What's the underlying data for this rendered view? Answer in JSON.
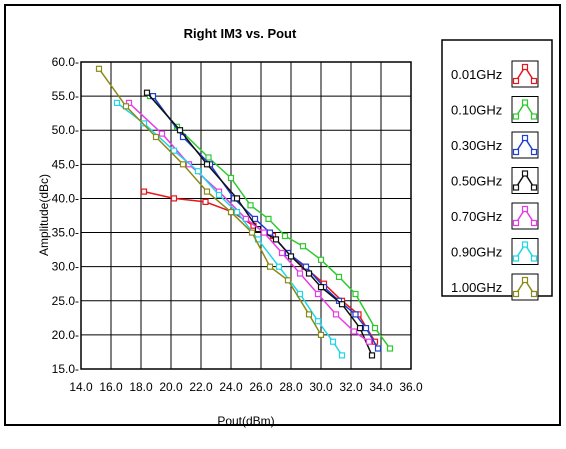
{
  "chart_data": {
    "type": "line",
    "title": "Right IM3 vs. Pout",
    "xlabel": "Pout(dBm)",
    "ylabel": "Amplitude(dBc)",
    "xlim": [
      14.0,
      36.0
    ],
    "ylim": [
      15.0,
      60.0
    ],
    "x_ticks": [
      "14.0",
      "16.0",
      "18.0",
      "20.0",
      "22.0",
      "24.0",
      "26.0",
      "28.0",
      "30.0",
      "32.0",
      "34.0",
      "36.0"
    ],
    "y_ticks": [
      "15.0-",
      "20.0-",
      "25.0-",
      "30.0-",
      "35.0-",
      "40.0-",
      "45.0-",
      "50.0-",
      "55.0-",
      "60.0-"
    ],
    "grid": true,
    "legend_position": "right",
    "series": [
      {
        "name": "0.01GHz",
        "color": "#e8151b",
        "x": [
          18.2,
          20.2,
          22.3,
          24.1,
          25.5,
          26.8,
          27.8,
          28.9,
          30.2,
          31.4,
          32.5,
          33.6
        ],
        "y": [
          41.0,
          40.0,
          39.5,
          38.0,
          36.0,
          34.5,
          32.0,
          30.0,
          27.5,
          25.0,
          23.0,
          19.0
        ]
      },
      {
        "name": "0.10GHz",
        "color": "#2fc92f",
        "x": [
          18.6,
          20.4,
          22.5,
          24.0,
          25.3,
          26.5,
          27.6,
          28.8,
          30.0,
          31.2,
          32.3,
          33.6,
          34.6
        ],
        "y": [
          55.0,
          50.5,
          46.0,
          43.0,
          39.0,
          37.0,
          34.5,
          33.0,
          31.0,
          28.5,
          26.0,
          21.0,
          18.0
        ]
      },
      {
        "name": "0.30GHz",
        "color": "#1f3fd6",
        "x": [
          18.8,
          20.8,
          22.6,
          24.2,
          25.6,
          26.6,
          27.8,
          29.0,
          30.2,
          31.2,
          32.3,
          33.0,
          33.8
        ],
        "y": [
          55.0,
          49.0,
          45.0,
          40.0,
          37.0,
          35.0,
          32.0,
          30.0,
          27.0,
          25.0,
          23.0,
          21.0,
          18.0
        ]
      },
      {
        "name": "0.50GHz",
        "color": "#111111",
        "x": [
          18.4,
          20.6,
          22.4,
          24.4,
          25.8,
          27.0,
          28.0,
          29.2,
          30.0,
          31.4,
          32.6,
          33.4
        ],
        "y": [
          55.5,
          50.0,
          45.0,
          40.0,
          35.5,
          34.0,
          31.5,
          29.0,
          27.0,
          24.5,
          21.0,
          17.0
        ]
      },
      {
        "name": "0.70GHz",
        "color": "#e83be8",
        "x": [
          17.2,
          19.4,
          21.2,
          23.2,
          25.0,
          26.2,
          27.4,
          28.6,
          29.8,
          31.0,
          32.2,
          33.2
        ],
        "y": [
          54.0,
          49.5,
          45.0,
          41.0,
          37.0,
          35.0,
          32.0,
          29.0,
          26.0,
          23.0,
          20.5,
          19.0
        ]
      },
      {
        "name": "0.90GHz",
        "color": "#1fd6e8",
        "x": [
          16.4,
          18.2,
          20.2,
          21.8,
          23.2,
          24.4,
          25.8,
          27.2,
          28.6,
          29.8,
          30.8,
          31.4
        ],
        "y": [
          54.0,
          51.0,
          47.0,
          44.0,
          40.5,
          38.0,
          34.0,
          30.0,
          26.0,
          22.0,
          19.0,
          17.0
        ]
      },
      {
        "name": "1.00GHz",
        "color": "#8a8a18",
        "x": [
          15.2,
          17.0,
          19.0,
          20.8,
          22.4,
          24.0,
          25.4,
          26.6,
          27.8,
          29.2,
          30.0
        ],
        "y": [
          59.0,
          53.5,
          49.0,
          45.0,
          41.0,
          38.0,
          35.0,
          30.0,
          28.0,
          23.0,
          20.0
        ]
      }
    ]
  }
}
